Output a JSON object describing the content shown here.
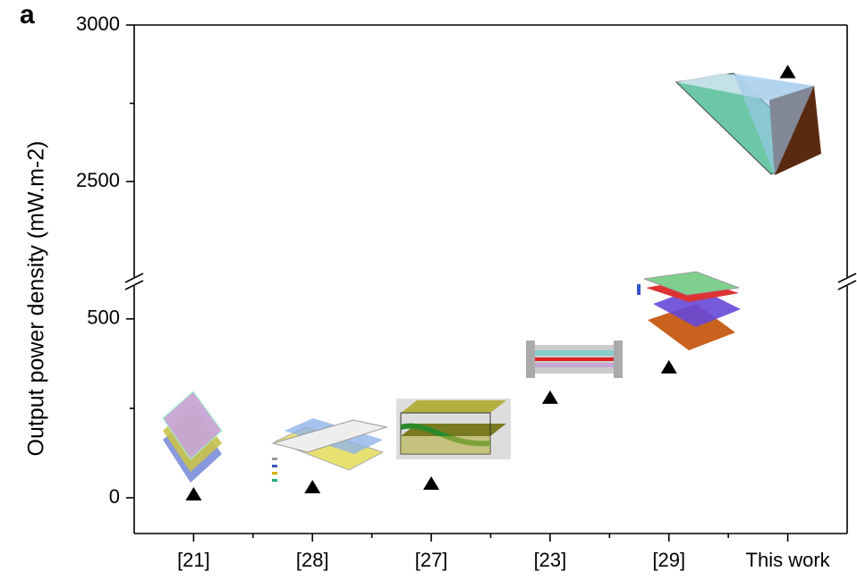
{
  "panel_label": "a",
  "chart_data": {
    "type": "scatter",
    "y_label": "Output power density (mW.m-2)",
    "categories": [
      "[21]",
      "[28]",
      "[27]",
      "[23]",
      "[29]",
      "This work"
    ],
    "values": [
      10,
      30,
      40,
      280,
      365,
      2850
    ],
    "color": "#000000",
    "marker": "triangle",
    "segments": [
      {
        "ylim": [
          2195,
          3000
        ],
        "yticks": [
          2500,
          3000
        ],
        "minor_yticks": [
          2750
        ]
      },
      {
        "ylim": [
          -100,
          592
        ],
        "yticks": [
          0,
          500
        ],
        "minor_yticks": [
          250
        ]
      }
    ]
  }
}
